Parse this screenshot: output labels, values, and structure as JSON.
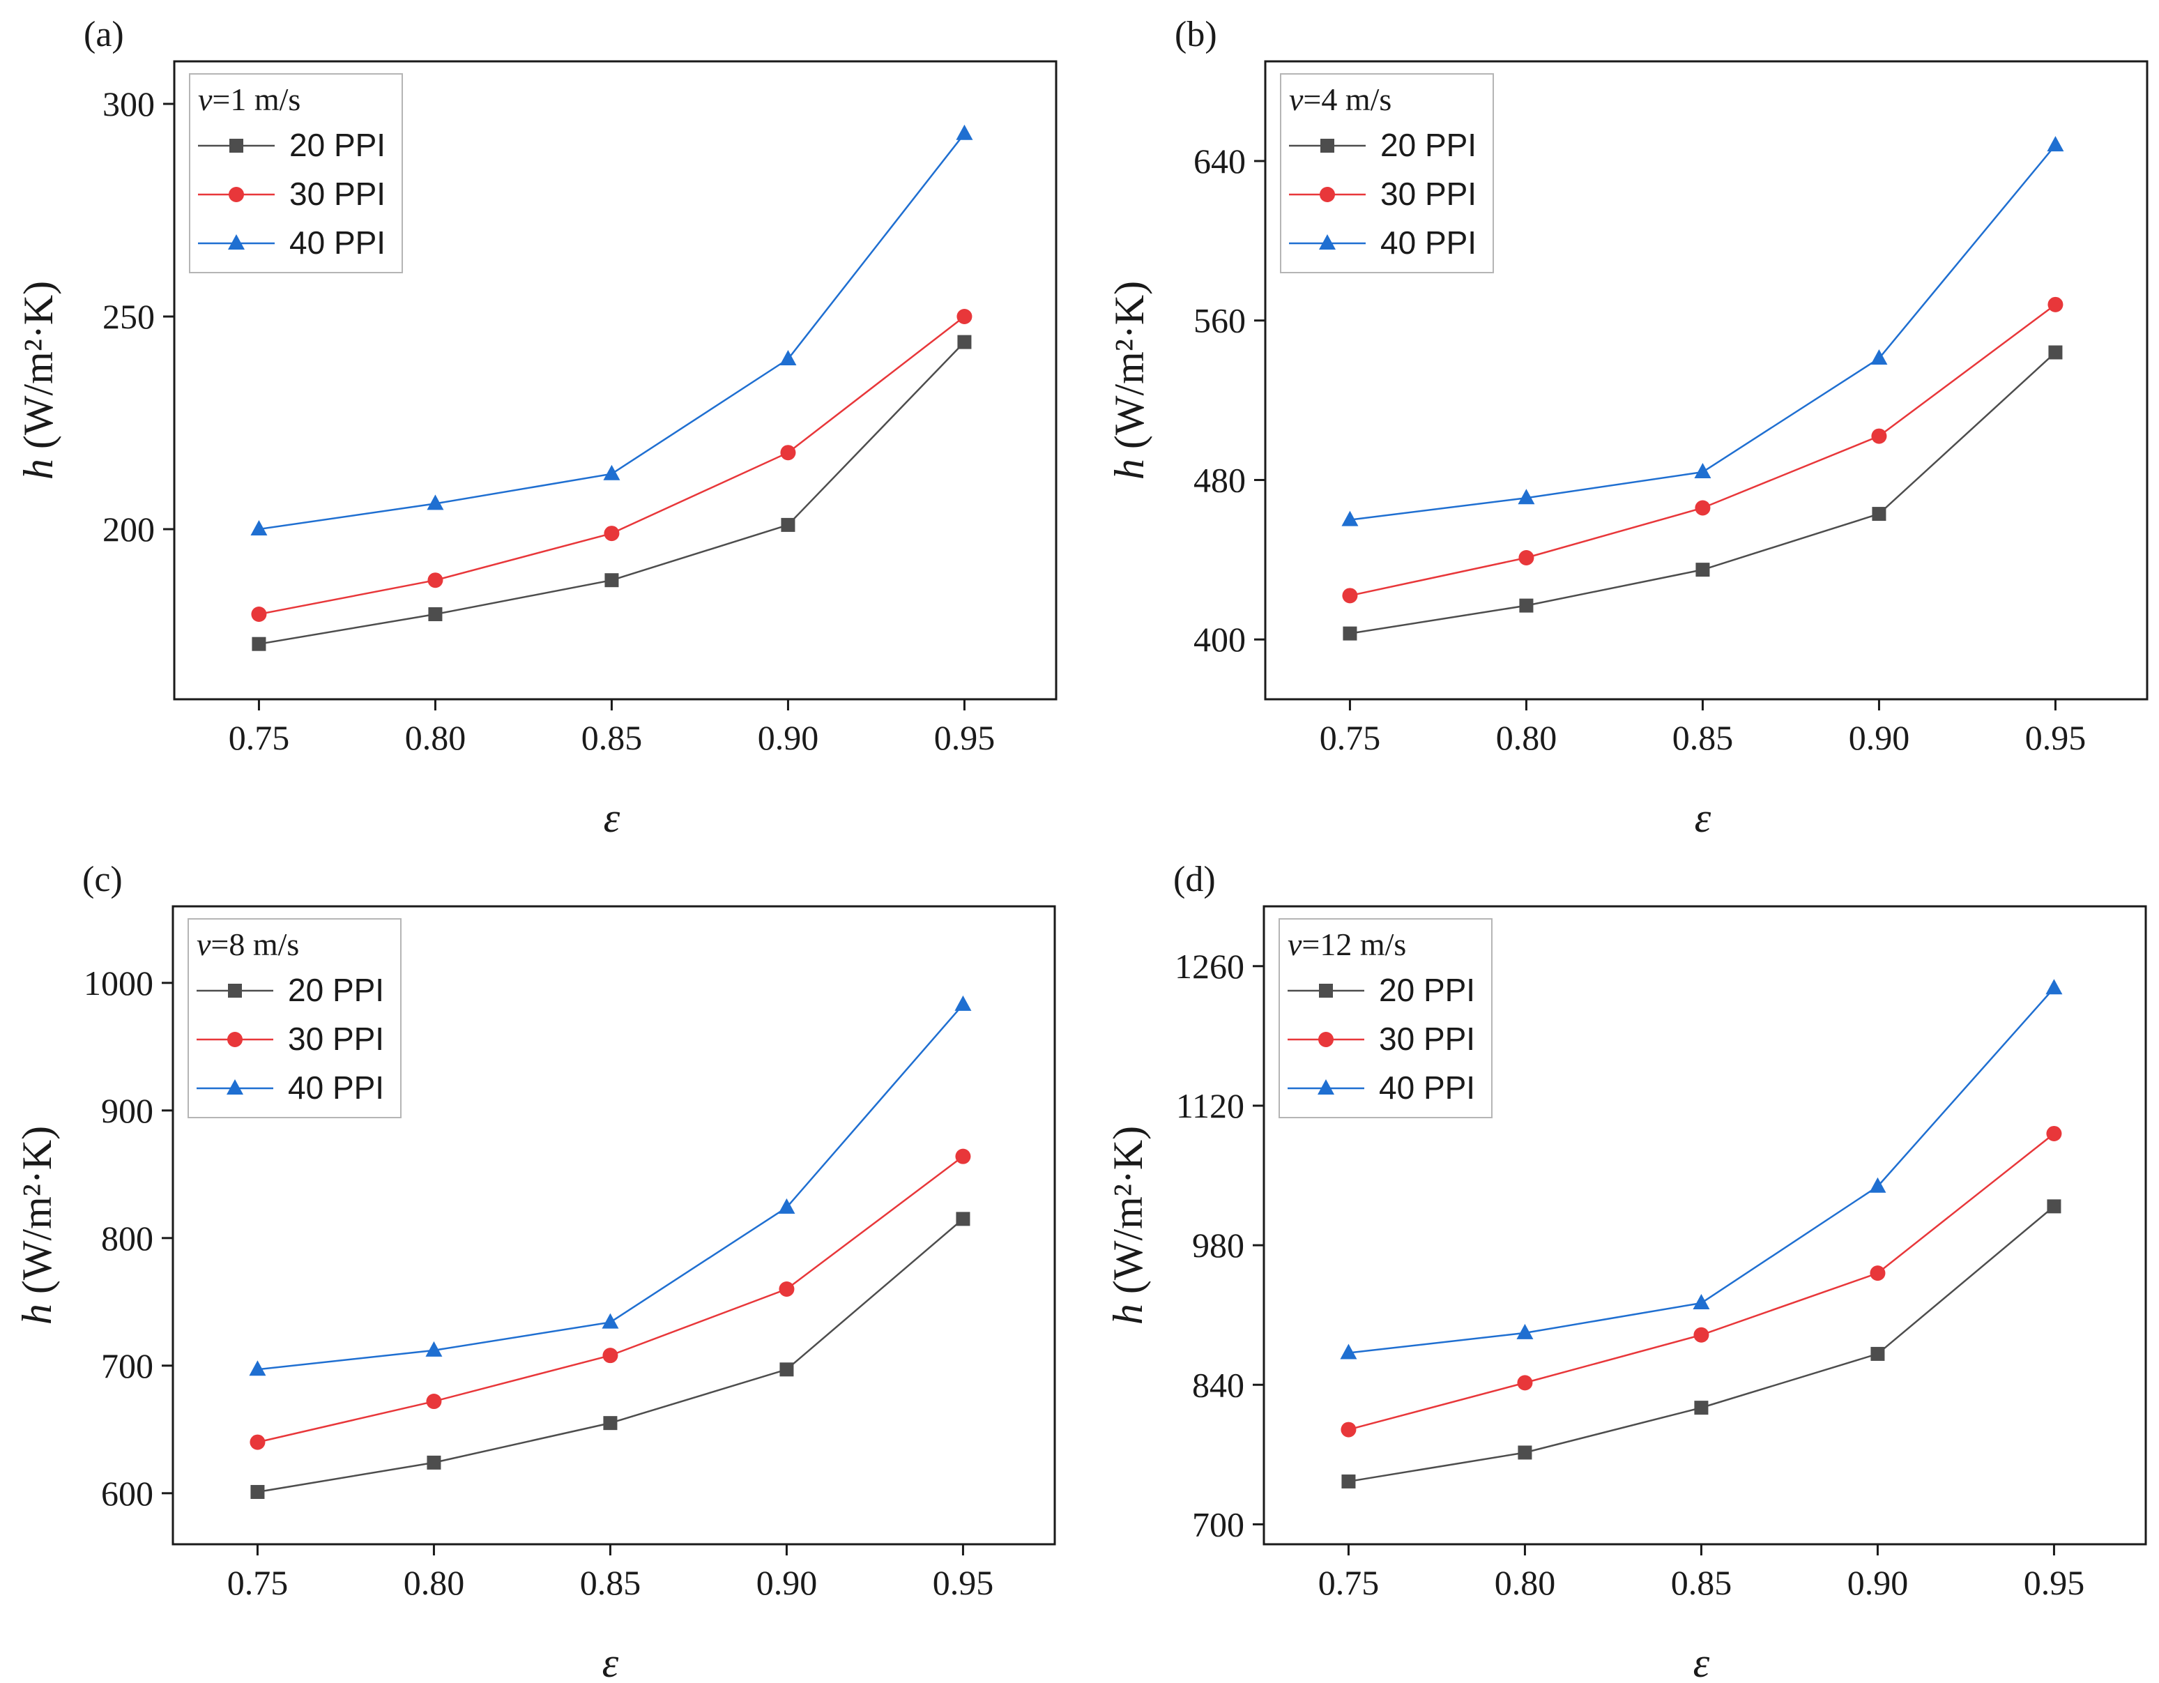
{
  "figure": {
    "series_styles": [
      {
        "name": "20 PPI",
        "color": "#4d4d4d",
        "marker": "square"
      },
      {
        "name": "30 PPI",
        "color": "#e8373a",
        "marker": "circle"
      },
      {
        "name": "40 PPI",
        "color": "#1f6fd1",
        "marker": "triangle"
      }
    ]
  },
  "chart_data": [
    {
      "type": "line",
      "panel_label": "(a)",
      "legend_title_var": "v",
      "legend_title_rest": "=1 m/s",
      "xlabel": "ε",
      "ylabel_symbol": "h",
      "ylabel_unit": "(W/m²·K)",
      "x": [
        0.75,
        0.8,
        0.85,
        0.9,
        0.95
      ],
      "x_ticks": [
        "0.75",
        "0.80",
        "0.85",
        "0.90",
        "0.95"
      ],
      "xlim": [
        0.726,
        0.976
      ],
      "ylim": [
        160,
        310
      ],
      "y_ticks": [
        200,
        250,
        300
      ],
      "series": [
        {
          "name": "20 PPI",
          "values": [
            173,
            180,
            188,
            201,
            244
          ]
        },
        {
          "name": "30 PPI",
          "values": [
            180,
            188,
            199,
            218,
            250
          ]
        },
        {
          "name": "40 PPI",
          "values": [
            200,
            206,
            213,
            240,
            293
          ]
        }
      ]
    },
    {
      "type": "line",
      "panel_label": "(b)",
      "legend_title_var": "v",
      "legend_title_rest": "=4 m/s",
      "xlabel": "ε",
      "ylabel_symbol": "h",
      "ylabel_unit": "(W/m²·K)",
      "x": [
        0.75,
        0.8,
        0.85,
        0.9,
        0.95
      ],
      "x_ticks": [
        "0.75",
        "0.80",
        "0.85",
        "0.90",
        "0.95"
      ],
      "xlim": [
        0.726,
        0.976
      ],
      "ylim": [
        370,
        690
      ],
      "y_ticks": [
        400,
        480,
        560,
        640
      ],
      "series": [
        {
          "name": "20 PPI",
          "values": [
            403,
            417,
            435,
            463,
            544
          ]
        },
        {
          "name": "30 PPI",
          "values": [
            422,
            441,
            466,
            502,
            568
          ]
        },
        {
          "name": "40 PPI",
          "values": [
            460,
            471,
            484,
            541,
            648
          ]
        }
      ]
    },
    {
      "type": "line",
      "panel_label": "(c)",
      "legend_title_var": "v",
      "legend_title_rest": "=8 m/s",
      "xlabel": "ε",
      "ylabel_symbol": "h",
      "ylabel_unit": "(W/m²·K)",
      "x": [
        0.75,
        0.8,
        0.85,
        0.9,
        0.95
      ],
      "x_ticks": [
        "0.75",
        "0.80",
        "0.85",
        "0.90",
        "0.95"
      ],
      "xlim": [
        0.726,
        0.976
      ],
      "ylim": [
        560,
        1060
      ],
      "y_ticks": [
        600,
        700,
        800,
        900,
        1000
      ],
      "series": [
        {
          "name": "20 PPI",
          "values": [
            601,
            624,
            655,
            697,
            815
          ]
        },
        {
          "name": "30 PPI",
          "values": [
            640,
            672,
            708,
            760,
            864
          ]
        },
        {
          "name": "40 PPI",
          "values": [
            697,
            712,
            734,
            824,
            983
          ]
        }
      ]
    },
    {
      "type": "line",
      "panel_label": "(d)",
      "legend_title_var": "v",
      "legend_title_rest": "=12 m/s",
      "xlabel": "ε",
      "ylabel_symbol": "h",
      "ylabel_unit": "(W/m²·K)",
      "x": [
        0.75,
        0.8,
        0.85,
        0.9,
        0.95
      ],
      "x_ticks": [
        "0.75",
        "0.80",
        "0.85",
        "0.90",
        "0.95"
      ],
      "xlim": [
        0.726,
        0.976
      ],
      "ylim": [
        680,
        1320
      ],
      "y_ticks": [
        700,
        840,
        980,
        1120,
        1260
      ],
      "series": [
        {
          "name": "20 PPI",
          "values": [
            743,
            772,
            817,
            871,
            1019
          ]
        },
        {
          "name": "30 PPI",
          "values": [
            795,
            842,
            890,
            952,
            1092
          ]
        },
        {
          "name": "40 PPI",
          "values": [
            872,
            892,
            922,
            1039,
            1238
          ]
        }
      ]
    }
  ]
}
